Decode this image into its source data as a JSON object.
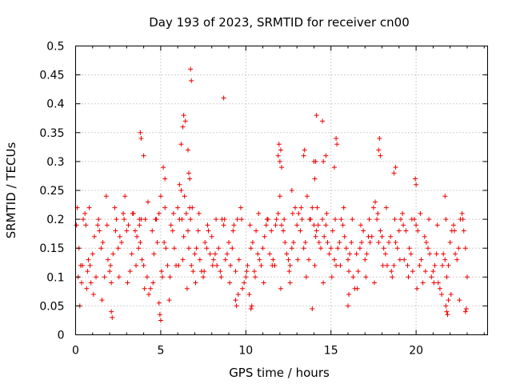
{
  "chart_data": {
    "type": "scatter",
    "title": "Day 193 of 2023, SRMTID for receiver cn00",
    "xlabel": "GPS time / hours",
    "ylabel": "SRMTID / TECUs",
    "xlim": [
      0,
      24.2
    ],
    "ylim": [
      0,
      0.5
    ],
    "xticks": [
      0,
      5,
      10,
      15,
      20
    ],
    "xtick_labels": [
      "0",
      "5",
      "10",
      "15",
      "20"
    ],
    "yticks": [
      0,
      0.05,
      0.1,
      0.15,
      0.2,
      0.25,
      0.3,
      0.35,
      0.4,
      0.45,
      0.5
    ],
    "ytick_labels": [
      "0",
      "0.05",
      "0.1",
      "0.15",
      "0.2",
      "0.25",
      "0.3",
      "0.35",
      "0.4",
      "0.45",
      "0.5"
    ],
    "grid": true,
    "marker": "+",
    "marker_color": "#ee0000",
    "series": [
      {
        "name": "SRMTID",
        "x": [
          0.05,
          0.1,
          0.2,
          0.3,
          0.35,
          0.45,
          0.55,
          0.6,
          0.7,
          0.75,
          0.85,
          0.9,
          1.0,
          1.1,
          1.2,
          1.3,
          1.4,
          1.5,
          1.6,
          1.7,
          1.8,
          1.9,
          2.0,
          2.1,
          2.2,
          2.3,
          2.4,
          2.5,
          2.6,
          2.7,
          2.8,
          2.9,
          3.0,
          3.1,
          3.2,
          3.3,
          3.4,
          3.5,
          3.6,
          3.7,
          3.8,
          3.85,
          3.9,
          4.0,
          4.1,
          4.2,
          4.3,
          4.4,
          4.5,
          4.6,
          4.7,
          4.8,
          4.9,
          5.0,
          5.1,
          5.2,
          5.3,
          5.4,
          5.5,
          5.6,
          5.7,
          5.8,
          5.9,
          6.0,
          6.1,
          6.2,
          6.3,
          6.35,
          6.4,
          6.5,
          6.6,
          6.65,
          6.7,
          6.75,
          6.8,
          6.9,
          7.0,
          7.1,
          7.2,
          7.3,
          7.4,
          7.5,
          7.6,
          7.7,
          7.8,
          7.9,
          8.0,
          8.1,
          8.2,
          8.3,
          8.4,
          8.5,
          8.6,
          8.7,
          8.8,
          8.9,
          9.0,
          9.1,
          9.2,
          9.3,
          9.4,
          9.5,
          9.6,
          9.7,
          9.8,
          9.9,
          10.0,
          10.1,
          10.2,
          10.3,
          10.4,
          10.5,
          10.6,
          10.7,
          10.8,
          10.9,
          11.0,
          11.1,
          11.2,
          11.3,
          11.4,
          11.5,
          11.6,
          11.7,
          11.8,
          11.9,
          12.0,
          12.1,
          12.2,
          12.3,
          12.4,
          12.5,
          12.6,
          12.7,
          12.8,
          12.9,
          13.0,
          13.1,
          13.2,
          13.3,
          13.4,
          13.5,
          13.6,
          13.7,
          13.8,
          13.9,
          14.0,
          14.1,
          14.15,
          14.2,
          14.3,
          14.4,
          14.5,
          14.6,
          14.7,
          14.8,
          14.9,
          15.0,
          15.1,
          15.2,
          15.3,
          15.4,
          15.5,
          15.6,
          15.7,
          15.8,
          15.9,
          16.0,
          16.1,
          16.2,
          16.3,
          16.4,
          16.5,
          16.6,
          16.7,
          16.8,
          16.9,
          17.0,
          17.1,
          17.2,
          17.3,
          17.4,
          17.5,
          17.6,
          17.7,
          17.8,
          17.9,
          18.0,
          18.1,
          18.2,
          18.3,
          18.4,
          18.5,
          18.6,
          18.7,
          18.8,
          18.9,
          19.0,
          19.1,
          19.2,
          19.3,
          19.4,
          19.5,
          19.6,
          19.7,
          19.8,
          19.9,
          20.0,
          20.1,
          20.2,
          20.3,
          20.4,
          20.5,
          20.6,
          20.7,
          20.8,
          20.9,
          21.0,
          21.1,
          21.2,
          21.3,
          21.4,
          21.5,
          21.6,
          21.7,
          21.8,
          21.9,
          22.0,
          22.1,
          22.2,
          22.3,
          22.4,
          22.5,
          22.6,
          22.7,
          22.8,
          22.9,
          23.0,
          0.15,
          0.4,
          0.65,
          1.05,
          1.55,
          2.05,
          2.55,
          3.05,
          3.55,
          4.05,
          4.55,
          5.05,
          5.55,
          6.05,
          6.55,
          7.05,
          7.55,
          8.05,
          8.55,
          9.05,
          9.55,
          10.05,
          10.55,
          11.05,
          11.55,
          12.05,
          12.55,
          13.05,
          13.55,
          14.05,
          14.55,
          15.05,
          15.55,
          16.05,
          16.55,
          17.05,
          17.55,
          18.05,
          18.55,
          19.05,
          19.55,
          20.05,
          20.55,
          21.05,
          21.55,
          22.05,
          22.55,
          0.25,
          0.8,
          1.35,
          1.85,
          2.35,
          2.85,
          3.35,
          3.75,
          4.25,
          4.75,
          5.25,
          5.75,
          6.25,
          6.85,
          7.25,
          7.75,
          8.25,
          8.75,
          9.25,
          9.75,
          10.25,
          10.75,
          11.25,
          11.75,
          12.25,
          12.75,
          13.25,
          13.75,
          14.25,
          14.75,
          15.25,
          15.75,
          16.25,
          16.75,
          17.25,
          17.75,
          18.25,
          18.75,
          19.25,
          19.75,
          20.25,
          20.75,
          21.25,
          21.75,
          22.25,
          22.75,
          3.75,
          3.8,
          3.85,
          4.0,
          5.15,
          5.25,
          6.1,
          6.2,
          6.3,
          6.35,
          6.45,
          6.6,
          6.65,
          6.7,
          6.75,
          6.8,
          8.7,
          11.9,
          11.95,
          12.0,
          12.05,
          12.1,
          13.4,
          13.45,
          14.0,
          14.05,
          14.1,
          14.15,
          14.5,
          14.55,
          14.7,
          15.2,
          15.3,
          15.35,
          17.8,
          17.85,
          17.9,
          18.7,
          18.8,
          19.95,
          20.0,
          21.7,
          21.75,
          21.8,
          21.85,
          21.9,
          2.1,
          2.15,
          4.9,
          4.95,
          5.0,
          10.3,
          10.35,
          13.9,
          16.0,
          16.05,
          9.4,
          9.45,
          12.6,
          12.7,
          22.9,
          22.95
        ],
        "y": [
          0.19,
          0.22,
          0.15,
          0.12,
          0.09,
          0.2,
          0.21,
          0.19,
          0.11,
          0.13,
          0.12,
          0.09,
          0.14,
          0.17,
          0.1,
          0.19,
          0.18,
          0.15,
          0.16,
          0.1,
          0.24,
          0.13,
          0.11,
          0.09,
          0.14,
          0.22,
          0.2,
          0.15,
          0.17,
          0.16,
          0.21,
          0.24,
          0.18,
          0.19,
          0.11,
          0.14,
          0.21,
          0.18,
          0.17,
          0.15,
          0.16,
          0.2,
          0.13,
          0.12,
          0.2,
          0.1,
          0.07,
          0.08,
          0.18,
          0.14,
          0.2,
          0.16,
          0.21,
          0.24,
          0.1,
          0.16,
          0.15,
          0.12,
          0.06,
          0.19,
          0.18,
          0.15,
          0.12,
          0.22,
          0.2,
          0.25,
          0.13,
          0.17,
          0.24,
          0.21,
          0.18,
          0.15,
          0.22,
          0.2,
          0.12,
          0.11,
          0.14,
          0.15,
          0.18,
          0.13,
          0.11,
          0.1,
          0.16,
          0.15,
          0.18,
          0.14,
          0.17,
          0.13,
          0.14,
          0.12,
          0.15,
          0.11,
          0.2,
          0.19,
          0.13,
          0.14,
          0.16,
          0.12,
          0.15,
          0.19,
          0.11,
          0.2,
          0.13,
          0.22,
          0.08,
          0.09,
          0.1,
          0.12,
          0.07,
          0.15,
          0.16,
          0.11,
          0.18,
          0.14,
          0.13,
          0.12,
          0.15,
          0.17,
          0.19,
          0.2,
          0.14,
          0.18,
          0.13,
          0.12,
          0.2,
          0.21,
          0.24,
          0.19,
          0.18,
          0.16,
          0.14,
          0.13,
          0.12,
          0.15,
          0.16,
          0.22,
          0.19,
          0.21,
          0.18,
          0.2,
          0.15,
          0.16,
          0.24,
          0.13,
          0.2,
          0.22,
          0.19,
          0.17,
          0.18,
          0.22,
          0.16,
          0.15,
          0.2,
          0.17,
          0.19,
          0.16,
          0.14,
          0.15,
          0.18,
          0.13,
          0.12,
          0.15,
          0.16,
          0.2,
          0.19,
          0.17,
          0.15,
          0.13,
          0.14,
          0.16,
          0.1,
          0.08,
          0.14,
          0.11,
          0.15,
          0.16,
          0.18,
          0.13,
          0.14,
          0.17,
          0.16,
          0.17,
          0.22,
          0.23,
          0.2,
          0.16,
          0.18,
          0.17,
          0.15,
          0.14,
          0.12,
          0.16,
          0.17,
          0.1,
          0.12,
          0.16,
          0.15,
          0.18,
          0.2,
          0.21,
          0.13,
          0.18,
          0.12,
          0.15,
          0.14,
          0.11,
          0.2,
          0.19,
          0.18,
          0.12,
          0.13,
          0.09,
          0.17,
          0.16,
          0.15,
          0.14,
          0.1,
          0.11,
          0.12,
          0.14,
          0.09,
          0.08,
          0.07,
          0.14,
          0.13,
          0.1,
          0.12,
          0.16,
          0.18,
          0.19,
          0.14,
          0.13,
          0.15,
          0.2,
          0.21,
          0.18,
          0.15,
          0.1,
          0.1,
          0.12,
          0.08,
          0.07,
          0.06,
          0.12,
          0.1,
          0.09,
          0.12,
          0.08,
          0.09,
          0.11,
          0.1,
          0.12,
          0.08,
          0.09,
          0.11,
          0.12,
          0.1,
          0.09,
          0.07,
          0.11,
          0.1,
          0.09,
          0.12,
          0.08,
          0.11,
          0.13,
          0.1,
          0.12,
          0.09,
          0.1,
          0.12,
          0.11,
          0.08,
          0.1,
          0.09,
          0.12,
          0.11,
          0.13,
          0.1,
          0.08,
          0.11,
          0.09,
          0.12,
          0.07,
          0.06,
          0.05,
          0.22,
          0.2,
          0.19,
          0.18,
          0.2,
          0.21,
          0.2,
          0.23,
          0.2,
          0.22,
          0.21,
          0.2,
          0.22,
          0.21,
          0.19,
          0.2,
          0.2,
          0.18,
          0.2,
          0.19,
          0.21,
          0.2,
          0.19,
          0.2,
          0.21,
          0.22,
          0.2,
          0.19,
          0.21,
          0.2,
          0.22,
          0.2,
          0.19,
          0.2,
          0.21,
          0.22,
          0.2,
          0.19,
          0.2,
          0.21,
          0.2,
          0.19,
          0.2,
          0.18,
          0.2,
          0.19,
          0.35,
          0.34,
          0.31,
          0.29,
          0.27,
          0.26,
          0.33,
          0.36,
          0.38,
          0.37,
          0.32,
          0.28,
          0.27,
          0.46,
          0.44,
          0.41,
          0.31,
          0.33,
          0.3,
          0.32,
          0.29,
          0.31,
          0.32,
          0.3,
          0.27,
          0.3,
          0.38,
          0.37,
          0.3,
          0.31,
          0.29,
          0.34,
          0.33,
          0.32,
          0.34,
          0.31,
          0.28,
          0.29,
          0.27,
          0.26,
          0.24,
          0.05,
          0.04,
          0.035,
          0.06,
          0.04,
          0.03,
          0.055,
          0.035,
          0.025,
          0.045,
          0.05,
          0.045,
          0.05,
          0.07,
          0.06,
          0.05,
          0.09,
          0.25,
          0.04,
          0.045
        ]
      }
    ]
  }
}
